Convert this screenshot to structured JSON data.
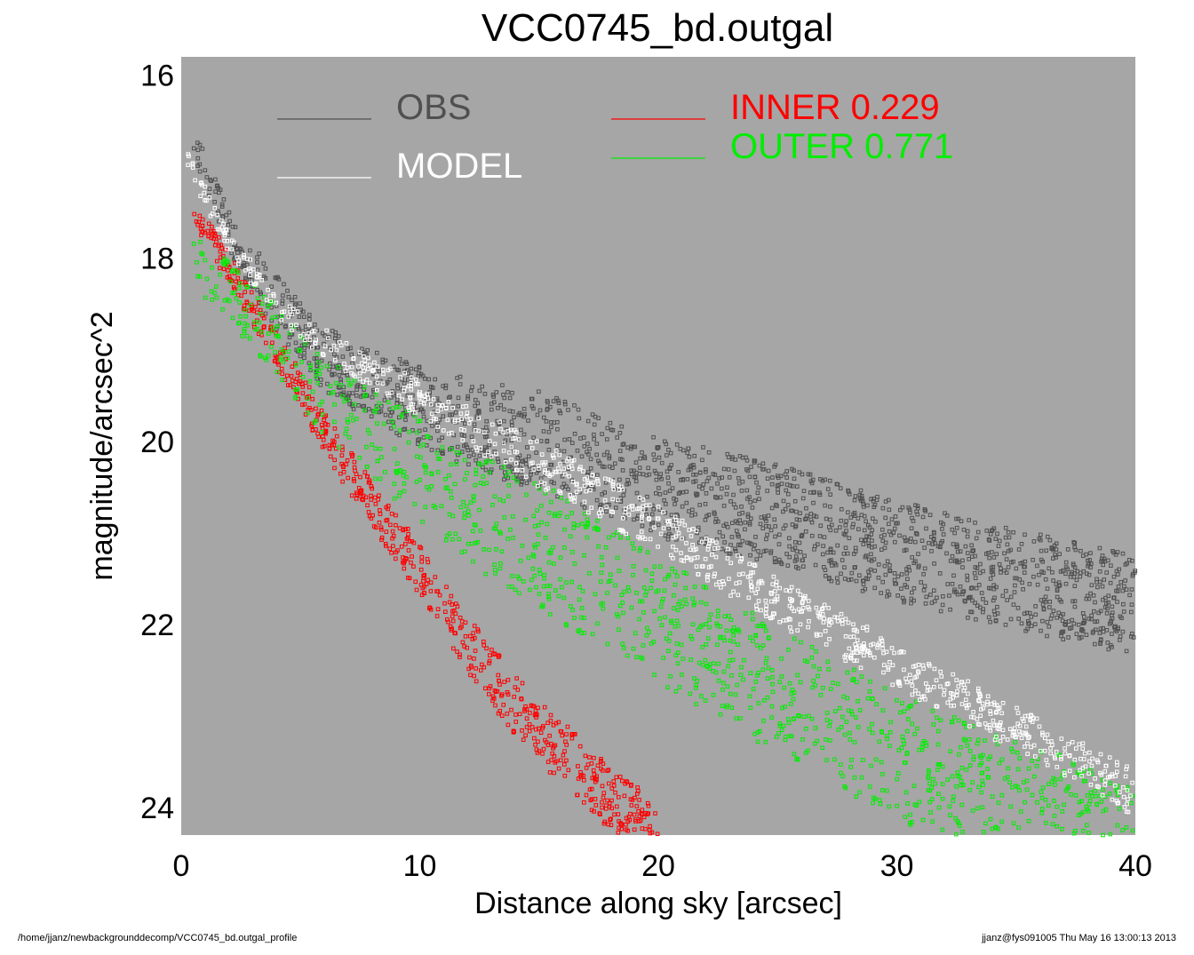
{
  "footer": {
    "path": "/home/jjanz/newbackgrounddecomp/VCC0745_bd.outgal_profile",
    "stamp": "jjanz@fys091005  Thu May 16 13:00:13 2013"
  },
  "colors": {
    "panel": "#a6a6a6",
    "obs": "#505050",
    "model": "#ffffff",
    "inner": "#ff0000",
    "outer": "#00ee00"
  },
  "chart_data": {
    "type": "scatter",
    "title": "VCC0745_bd.outgal",
    "xlabel": "Distance along sky [arcsec]",
    "ylabel": "magnitude/arcsec^2",
    "xlim": [
      0,
      40
    ],
    "ylim": [
      24.3,
      15.8
    ],
    "y_inverted": true,
    "xticks": [
      "0",
      "10",
      "20",
      "30",
      "40"
    ],
    "yticks": [
      "16",
      "18",
      "20",
      "22",
      "24"
    ],
    "legend": [
      {
        "label": "OBS",
        "value": "",
        "color": "#505050"
      },
      {
        "label": "MODEL",
        "value": "",
        "color": "#ffffff"
      },
      {
        "label": "INNER",
        "value": "0.229",
        "color": "#ff0000"
      },
      {
        "label": "OUTER",
        "value": "0.771",
        "color": "#00ee00"
      }
    ],
    "series": [
      {
        "name": "OBS",
        "marker": "square-open",
        "color": "#505050",
        "x": [
          0.5,
          2,
          4,
          6,
          8,
          10,
          12,
          15,
          18,
          20,
          25,
          30,
          35,
          40
        ],
        "y": [
          16.8,
          17.7,
          18.5,
          19.1,
          19.4,
          19.6,
          19.8,
          20.0,
          20.3,
          20.5,
          20.8,
          21.2,
          21.5,
          21.8
        ]
      },
      {
        "name": "MODEL",
        "marker": "square-open",
        "color": "#ffffff",
        "x": [
          0.2,
          2,
          4,
          6,
          8,
          10,
          15,
          20,
          25,
          30,
          35,
          40
        ],
        "y": [
          16.9,
          17.8,
          18.5,
          18.9,
          19.2,
          19.5,
          20.2,
          20.9,
          21.7,
          22.4,
          23.1,
          23.8
        ]
      },
      {
        "name": "INNER",
        "marker": "square-open",
        "color": "#ff0000",
        "x": [
          0.5,
          2,
          4,
          6,
          8,
          10,
          12,
          14,
          16,
          18,
          20
        ],
        "y": [
          17.5,
          18.1,
          19.0,
          19.9,
          20.7,
          21.4,
          22.2,
          22.9,
          23.4,
          23.9,
          24.3
        ]
      },
      {
        "name": "OUTER",
        "marker": "square-open",
        "color": "#00ee00",
        "x": [
          0.5,
          2,
          4,
          6,
          8,
          10,
          12,
          15,
          20,
          25,
          30,
          35,
          40
        ],
        "y": [
          18.0,
          18.3,
          18.8,
          19.4,
          19.8,
          20.2,
          20.6,
          21.0,
          21.8,
          22.6,
          23.3,
          23.8,
          24.3
        ]
      }
    ]
  }
}
